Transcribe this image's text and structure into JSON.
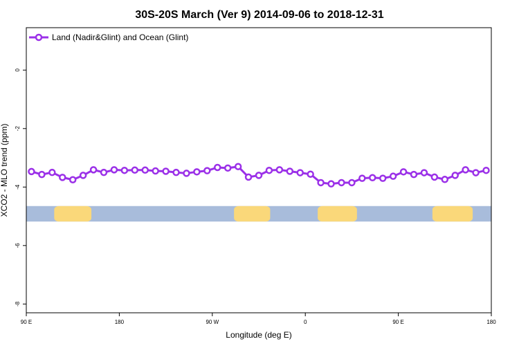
{
  "chart_data": {
    "type": "line",
    "title": "30S-20S March (Ver 9)   2014-09-06 to 2018-12-31",
    "xlabel": "Longitude (deg E)",
    "ylabel": "XCO2 - MLO trend (ppm)",
    "x_tick_labels": [
      "90 E",
      "180",
      "90 W",
      "0",
      "90 E",
      "180"
    ],
    "x_tick_values": [
      90,
      180,
      270,
      360,
      450,
      540
    ],
    "y_tick_labels": [
      "0",
      "-2",
      "-4",
      "-6",
      "-8"
    ],
    "y_tick_values": [
      0,
      -2,
      -4,
      -6,
      -8
    ],
    "xlim": [
      90,
      540
    ],
    "ylim": [
      -8.3,
      1.45
    ],
    "legend_position": "top-left",
    "grid": false,
    "series": [
      {
        "name": "Land (Nadir&Glint) and Ocean (Glint)",
        "color": "#9b30e8",
        "x": [
          95,
          105,
          115,
          125,
          135,
          145,
          155,
          165,
          175,
          185,
          195,
          205,
          215,
          225,
          235,
          245,
          255,
          265,
          275,
          285,
          295,
          305,
          315,
          325,
          335,
          345,
          355,
          365,
          375,
          385,
          395,
          405,
          415,
          425,
          435,
          445,
          455,
          465,
          475,
          485,
          495,
          505,
          515,
          525,
          535
        ],
        "values": [
          -3.47,
          -3.57,
          -3.5,
          -3.67,
          -3.75,
          -3.6,
          -3.41,
          -3.5,
          -3.41,
          -3.43,
          -3.42,
          -3.42,
          -3.45,
          -3.46,
          -3.5,
          -3.53,
          -3.48,
          -3.44,
          -3.33,
          -3.35,
          -3.3,
          -3.66,
          -3.6,
          -3.43,
          -3.41,
          -3.46,
          -3.51,
          -3.56,
          -3.85,
          -3.89,
          -3.85,
          -3.85,
          -3.7,
          -3.68,
          -3.7,
          -3.63,
          -3.48,
          -3.57,
          -3.51,
          -3.66,
          -3.74,
          -3.6,
          -3.41,
          -3.51,
          -3.43
        ]
      }
    ],
    "map_band": {
      "y_range": [
        -4.65,
        -5.18
      ],
      "ocean_color": "#a8bcdb",
      "land_color": "#fad87a",
      "land_x_ranges": [
        [
          117,
          153
        ],
        [
          291,
          326
        ],
        [
          372,
          410
        ],
        [
          483,
          522
        ]
      ]
    }
  }
}
